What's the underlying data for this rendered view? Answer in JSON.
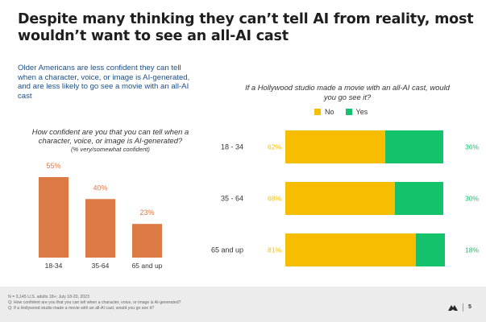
{
  "title": "Despite many thinking they can’t tell AI from reality, most wouldn’t want to see an all-AI cast",
  "intro": "Older Americans are less confident they can tell when a character, voice, or image is AI-generated, and are less likely to go see a movie with an all-AI cast",
  "colors": {
    "orange": "#dc7a46",
    "yellow": "#f7bd00",
    "green": "#13c26b",
    "blue_text": "#1a4f8a"
  },
  "left_chart": {
    "question": "How confident are you that you can tell when a character, voice, or image is AI-generated?",
    "subtitle": "(% very/somewhat confident)"
  },
  "right_chart": {
    "question": "If a Hollywood studio made a movie with an all-AI cast, would you go see it?"
  },
  "chart_data": [
    {
      "type": "bar",
      "title": "How confident are you that you can tell when a character, voice, or image is AI-generated?",
      "subtitle": "(% very/somewhat confident)",
      "categories": [
        "18-34",
        "35-64",
        "65 and up"
      ],
      "values": [
        55,
        40,
        23
      ],
      "value_labels": [
        "55%",
        "40%",
        "23%"
      ],
      "ylim": [
        0,
        55
      ],
      "xlabel": "",
      "ylabel": ""
    },
    {
      "type": "bar",
      "orientation": "horizontal",
      "stacked": true,
      "title": "If a Hollywood studio made a movie with an all-AI cast, would you go see it?",
      "categories": [
        "18 - 34",
        "35 - 64",
        "65 and up"
      ],
      "series": [
        {
          "name": "No",
          "values": [
            62,
            68,
            81
          ],
          "labels": [
            "62%",
            "68%",
            "81%"
          ]
        },
        {
          "name": "Yes",
          "values": [
            36,
            30,
            18
          ],
          "labels": [
            "36%",
            "30%",
            "18%"
          ]
        }
      ],
      "legend": [
        "No",
        "Yes"
      ],
      "legend_position": "top"
    }
  ],
  "footer": {
    "lines": [
      "N = 3,145 U.S. adults 18+; July 18-20, 2023",
      "Q: How confident are you that you can tell when a character, voice, or image is AI-generated?",
      "Q: If a Hollywood studio made a movie with an all-AI cast, would you go see it?"
    ],
    "page": "5"
  }
}
